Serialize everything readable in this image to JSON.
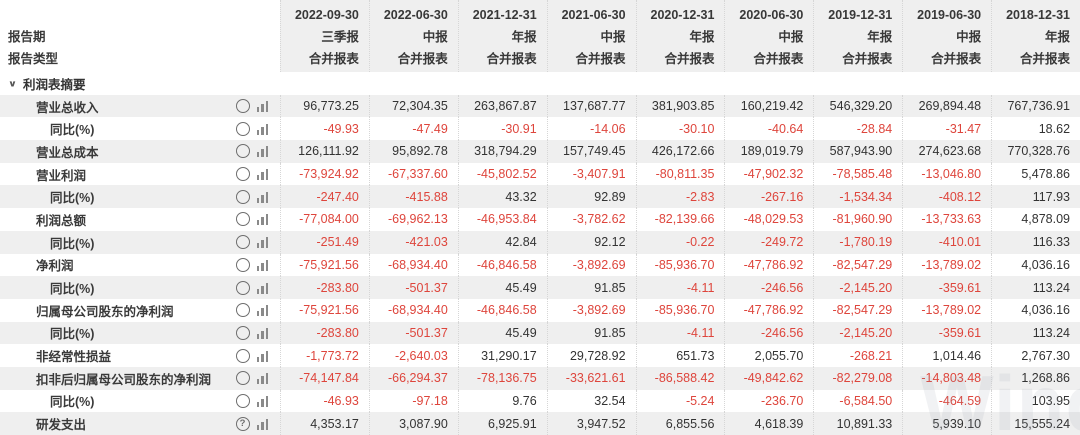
{
  "header": {
    "row_label_1": "报告期",
    "row_label_2": "报告类型",
    "columns": [
      {
        "date": "2022-09-30",
        "period": "三季报",
        "report_type": "合并报表"
      },
      {
        "date": "2022-06-30",
        "period": "中报",
        "report_type": "合并报表"
      },
      {
        "date": "2021-12-31",
        "period": "年报",
        "report_type": "合并报表"
      },
      {
        "date": "2021-06-30",
        "period": "中报",
        "report_type": "合并报表"
      },
      {
        "date": "2020-12-31",
        "period": "年报",
        "report_type": "合并报表"
      },
      {
        "date": "2020-06-30",
        "period": "中报",
        "report_type": "合并报表"
      },
      {
        "date": "2019-12-31",
        "period": "年报",
        "report_type": "合并报表"
      },
      {
        "date": "2019-06-30",
        "period": "中报",
        "report_type": "合并报表"
      },
      {
        "date": "2018-12-31",
        "period": "年报",
        "report_type": "合并报表"
      }
    ]
  },
  "section": {
    "title": "利润表摘要",
    "chevron": "∨"
  },
  "table": {
    "rows": [
      {
        "label": "营业总收入",
        "indent": 1,
        "help": false,
        "values": [
          "96,773.25",
          "72,304.35",
          "263,867.87",
          "137,687.77",
          "381,903.85",
          "160,219.42",
          "546,329.20",
          "269,894.48",
          "767,736.91"
        ]
      },
      {
        "label": "同比(%)",
        "indent": 2,
        "help": false,
        "values": [
          "-49.93",
          "-47.49",
          "-30.91",
          "-14.06",
          "-30.10",
          "-40.64",
          "-28.84",
          "-31.47",
          "18.62"
        ]
      },
      {
        "label": "营业总成本",
        "indent": 1,
        "help": false,
        "values": [
          "126,111.92",
          "95,892.78",
          "318,794.29",
          "157,749.45",
          "426,172.66",
          "189,019.79",
          "587,943.90",
          "274,623.68",
          "770,328.76"
        ]
      },
      {
        "label": "营业利润",
        "indent": 1,
        "help": false,
        "values": [
          "-73,924.92",
          "-67,337.60",
          "-45,802.52",
          "-3,407.91",
          "-80,811.35",
          "-47,902.32",
          "-78,585.48",
          "-13,046.80",
          "5,478.86"
        ]
      },
      {
        "label": "同比(%)",
        "indent": 2,
        "help": false,
        "values": [
          "-247.40",
          "-415.88",
          "43.32",
          "92.89",
          "-2.83",
          "-267.16",
          "-1,534.34",
          "-408.12",
          "117.93"
        ]
      },
      {
        "label": "利润总额",
        "indent": 1,
        "help": false,
        "values": [
          "-77,084.00",
          "-69,962.13",
          "-46,953.84",
          "-3,782.62",
          "-82,139.66",
          "-48,029.53",
          "-81,960.90",
          "-13,733.63",
          "4,878.09"
        ]
      },
      {
        "label": "同比(%)",
        "indent": 2,
        "help": false,
        "values": [
          "-251.49",
          "-421.03",
          "42.84",
          "92.12",
          "-0.22",
          "-249.72",
          "-1,780.19",
          "-410.01",
          "116.33"
        ]
      },
      {
        "label": "净利润",
        "indent": 1,
        "help": false,
        "values": [
          "-75,921.56",
          "-68,934.40",
          "-46,846.58",
          "-3,892.69",
          "-85,936.70",
          "-47,786.92",
          "-82,547.29",
          "-13,789.02",
          "4,036.16"
        ]
      },
      {
        "label": "同比(%)",
        "indent": 2,
        "help": false,
        "values": [
          "-283.80",
          "-501.37",
          "45.49",
          "91.85",
          "-4.11",
          "-246.56",
          "-2,145.20",
          "-359.61",
          "113.24"
        ]
      },
      {
        "label": "归属母公司股东的净利润",
        "indent": 1,
        "help": false,
        "values": [
          "-75,921.56",
          "-68,934.40",
          "-46,846.58",
          "-3,892.69",
          "-85,936.70",
          "-47,786.92",
          "-82,547.29",
          "-13,789.02",
          "4,036.16"
        ]
      },
      {
        "label": "同比(%)",
        "indent": 2,
        "help": false,
        "values": [
          "-283.80",
          "-501.37",
          "45.49",
          "91.85",
          "-4.11",
          "-246.56",
          "-2,145.20",
          "-359.61",
          "113.24"
        ]
      },
      {
        "label": "非经常性损益",
        "indent": 1,
        "help": false,
        "values": [
          "-1,773.72",
          "-2,640.03",
          "31,290.17",
          "29,728.92",
          "651.73",
          "2,055.70",
          "-268.21",
          "1,014.46",
          "2,767.30"
        ]
      },
      {
        "label": "扣非后归属母公司股东的净利润",
        "indent": 1,
        "help": false,
        "values": [
          "-74,147.84",
          "-66,294.37",
          "-78,136.75",
          "-33,621.61",
          "-86,588.42",
          "-49,842.62",
          "-82,279.08",
          "-14,803.48",
          "1,268.86"
        ]
      },
      {
        "label": "同比(%)",
        "indent": 2,
        "help": false,
        "values": [
          "-46.93",
          "-97.18",
          "9.76",
          "32.54",
          "-5.24",
          "-236.70",
          "-6,584.50",
          "-464.59",
          "103.95"
        ]
      },
      {
        "label": "研发支出",
        "indent": 1,
        "help": true,
        "values": [
          "4,353.17",
          "3,087.90",
          "6,925.91",
          "3,947.52",
          "6,855.56",
          "4,618.39",
          "10,891.33",
          "5,939.10",
          "15,555.24"
        ]
      }
    ]
  },
  "icons": {
    "bar_chart": "bar-chart-icon",
    "help": "help-icon",
    "chevron": "chevron-down-icon",
    "help_glyph": "?"
  },
  "watermark": "Wind",
  "colors": {
    "negative": "#de453c",
    "positive_text": "#333333",
    "stripe": "#efefef",
    "header_bg": "#efefef",
    "separator": "#d6d6d6"
  }
}
